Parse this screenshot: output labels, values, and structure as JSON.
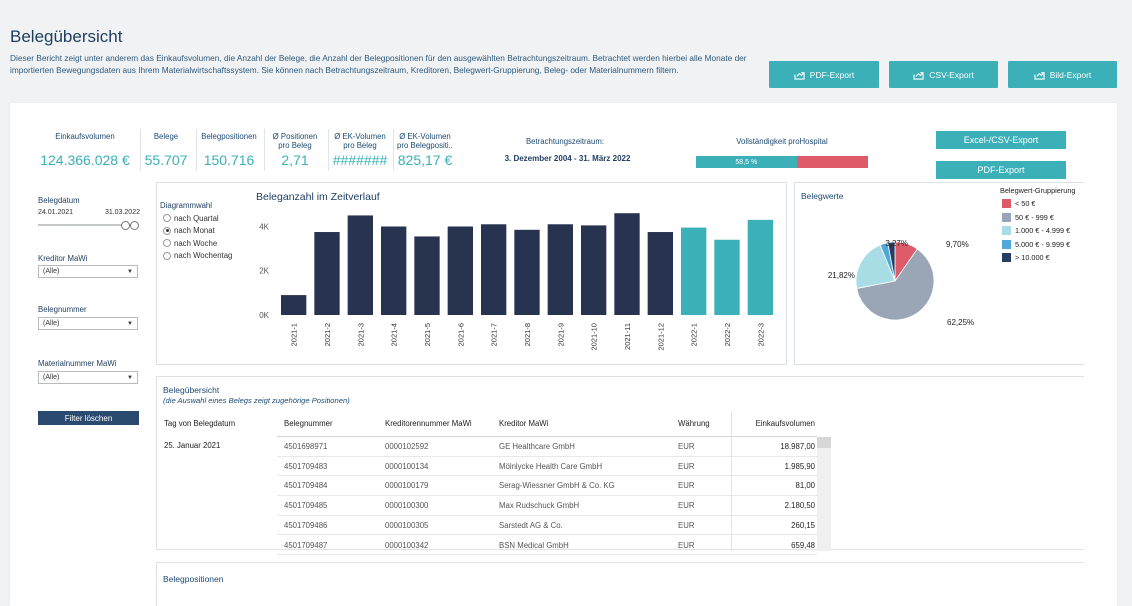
{
  "header": {
    "title": "Belegübersicht",
    "description": "Dieser Bericht zeigt unter anderem das Einkaufsvolumen, die Anzahl der Belege, die Anzahl der Belegpositionen für den ausgewählten Betrachtungszeitraum. Betrachtet werden hierbei alle Monate der importierten Bewegungsdaten aus Ihrem Materialwirtschaftssystem. Sie können nach Betrachtungszeitraum, Kreditoren, Belegwert-Gruppierung, Beleg- oder Materialnummern filtern.",
    "buttons": {
      "pdf": "PDF-Export",
      "csv": "CSV-Export",
      "img": "Bild-Export"
    }
  },
  "kpis": {
    "einkaufsvolumen": {
      "label": "Einkaufsvolumen",
      "value": "124.366.028 €"
    },
    "belege": {
      "label": "Belege",
      "value": "55.707"
    },
    "belegpositionen": {
      "label": "Belegpositionen",
      "value": "150.716"
    },
    "positionen_pro_beleg": {
      "label1": "Ø Positionen",
      "label2": "pro Beleg",
      "value": "2,71"
    },
    "ek_pro_beleg": {
      "label1": "Ø EK-Volumen",
      "label2": "pro Beleg",
      "value": "#######"
    },
    "ek_pro_position": {
      "label1": "Ø EK-Volumen",
      "label2": "pro Belegpositi..",
      "value": "825,17 €"
    }
  },
  "period": {
    "label": "Betrachtungszeitraum:",
    "value": "3. Dezember 2004 -  31. März 2022"
  },
  "completeness": {
    "label": "Vollständigkeit proHospital",
    "value_text": "58,5 %",
    "value": 58.5,
    "fill_color": "#3bb0b8",
    "rest_color": "#de5c6a"
  },
  "actions": {
    "excel_csv": "Excel-/CSV-Export",
    "pdf": "PDF-Export"
  },
  "filters": {
    "belegdatum": {
      "label": "Belegdatum",
      "from": "24.01.2021",
      "to": "31.03.2022"
    },
    "kreditor": {
      "label": "Kreditor MaWi",
      "value": "(Alle)"
    },
    "belegnummer": {
      "label": "Belegnummer",
      "value": "(Alle)"
    },
    "materialnummer": {
      "label": "Materialnummer MaWi",
      "value": "(Alle)"
    },
    "clear_button": "Filter löschen"
  },
  "diagrammwahl": {
    "label": "Diagrammwahl",
    "options": [
      "nach Quartal",
      "nach Monat",
      "nach Woche",
      "nach Wochentag"
    ],
    "selected": "nach Monat"
  },
  "bar_chart": {
    "title": "Beleganzahl im Zeitverlauf",
    "y_ticks": [
      "4K",
      "2K",
      "0K"
    ]
  },
  "pie_chart": {
    "title": "Belegwerte",
    "legend_title": "Belegwert-Gruppierung",
    "labels": [
      "9,70%",
      "62,25%",
      "21,82%",
      "3,27%"
    ]
  },
  "chart_data": [
    {
      "type": "bar",
      "title": "Beleganzahl im Zeitverlauf",
      "categories": [
        "2021-1",
        "2021-2",
        "2021-3",
        "2021-4",
        "2021-5",
        "2021-6",
        "2021-7",
        "2021-8",
        "2021-9",
        "2021-10",
        "2021-11",
        "2021-12",
        "2022-1",
        "2022-2",
        "2022-3"
      ],
      "values": [
        900,
        3750,
        4500,
        4000,
        3550,
        4000,
        4100,
        3850,
        4100,
        4050,
        4600,
        3750,
        3950,
        3400,
        4300
      ],
      "colors": [
        "#283350",
        "#283350",
        "#283350",
        "#283350",
        "#283350",
        "#283350",
        "#283350",
        "#283350",
        "#283350",
        "#283350",
        "#283350",
        "#283350",
        "#3bb0b8",
        "#3bb0b8",
        "#3bb0b8"
      ],
      "ylim": [
        0,
        4700
      ],
      "y_ticks": [
        "4K",
        "2K",
        "0K"
      ]
    },
    {
      "type": "pie",
      "title": "Belegwerte",
      "categories": [
        "< 50 €",
        "50 € - 999 €",
        "1.000 € - 4.999 €",
        "5.000 € - 9.999 €",
        "> 10.000 €"
      ],
      "values": [
        9.7,
        62.25,
        21.82,
        3.27,
        2.96
      ],
      "colors": [
        "#de5c6a",
        "#9aa6b5",
        "#a9dde6",
        "#4ea8d8",
        "#283c62"
      ]
    }
  ],
  "table": {
    "title": "Belegübersicht",
    "subtitle": "(die Auswahl eines Belegs zeigt zugehörige Positionen)",
    "columns": [
      "Tag von Belegdatum",
      "Belegnummer",
      "Kreditorennummer MaWi",
      "Kreditor MaWi",
      "Währung",
      "Einkaufsvolumen"
    ],
    "date": "25. Januar 2021",
    "rows": [
      [
        "4501698971",
        "0000102592",
        "GE Healthcare GmbH",
        "EUR",
        "18.987,00"
      ],
      [
        "4501709483",
        "0000100134",
        "Mölnlycke Health Care GmbH",
        "EUR",
        "1.985,90"
      ],
      [
        "4501709484",
        "0000100179",
        "Serag-Wiessner GmbH & Co. KG",
        "EUR",
        "81,00"
      ],
      [
        "4501709485",
        "0000100300",
        "Max Rudschuck GmbH",
        "EUR",
        "2.180,50"
      ],
      [
        "4501709486",
        "0000100305",
        "Sarstedt AG & Co.",
        "EUR",
        "260,15"
      ],
      [
        "4501709487",
        "0000100342",
        "BSN Medical GmbH",
        "EUR",
        "659,48"
      ]
    ]
  },
  "positions": {
    "title": "Belegpositionen"
  }
}
